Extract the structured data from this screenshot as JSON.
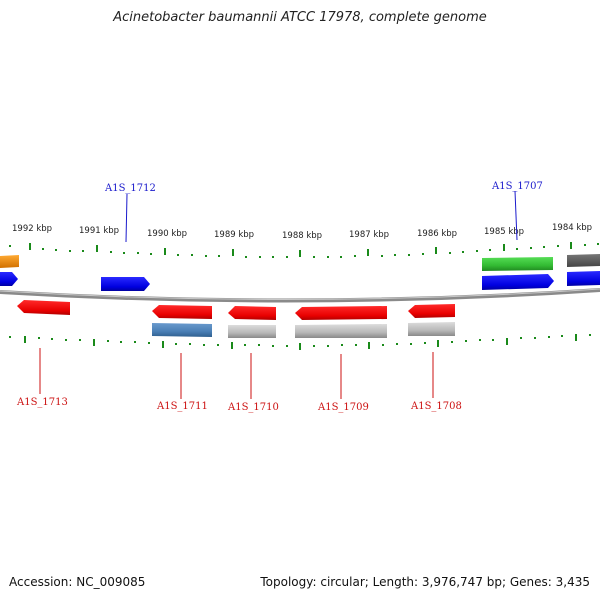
{
  "title": "Acinetobacter baumannii ATCC 17978, complete genome",
  "ticks": [
    "1992 kbp",
    "1991 kbp",
    "1990 kbp",
    "1989 kbp",
    "1988 kbp",
    "1987 kbp",
    "1986 kbp",
    "1985 kbp",
    "1984 kbp"
  ],
  "genes_top": [
    "A1S_1712",
    "A1S_1707"
  ],
  "genes_bottom": [
    "A1S_1713",
    "A1S_1711",
    "A1S_1710",
    "A1S_1709",
    "A1S_1708"
  ],
  "footer": {
    "accession": "Accession: NC_009085",
    "summary": "Topology: circular; Length: 3,976,747 bp; Genes: 3,435"
  },
  "colors": {
    "forward_strand": "#1010ee",
    "reverse_strand": "#ee1010",
    "label_forward": "#1a1acc",
    "label_reverse": "#cc1111",
    "tick": "#1a8a1a",
    "backbone": "#888888",
    "rna": "#33bb33",
    "pseudo": "#ff8c00",
    "other": "#4a7fb5"
  }
}
